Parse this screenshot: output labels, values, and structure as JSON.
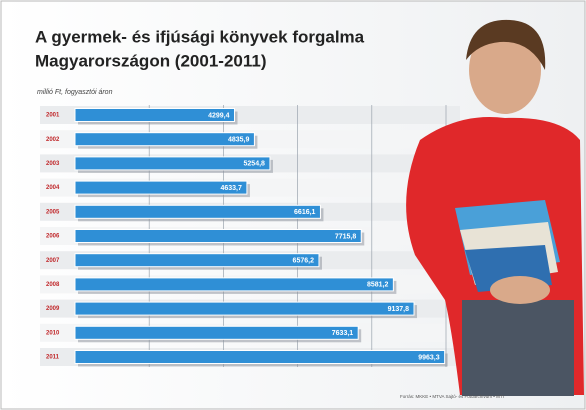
{
  "chart_data": {
    "type": "barh",
    "title": [
      "A gyermek- és ifjúsági könyvek forgalma",
      "Magyarországon (2001-2011)"
    ],
    "subtitle": "millió Ft, fogyasztói áron",
    "categories": [
      "2001",
      "2002",
      "2003",
      "2004",
      "2005",
      "2006",
      "2007",
      "2008",
      "2009",
      "2010",
      "2011"
    ],
    "values": [
      4299.4,
      4835.9,
      5254.8,
      4633.7,
      6616.1,
      7715.8,
      6576.2,
      8581.2,
      9137.8,
      7633.1,
      9963.3
    ],
    "value_labels": [
      "4299,4",
      "4835,9",
      "5254,8",
      "4633,7",
      "6616,1",
      "7715,8",
      "6576,2",
      "8581,2",
      "9137,8",
      "7633,1",
      "9963,3"
    ],
    "color": "#2f8fd6",
    "xlim": [
      0,
      10000
    ],
    "xgrid": [
      2000,
      4000,
      6000,
      8000,
      10000
    ],
    "source": "Forrás: MKKE • MTVA Sajtó- és Fotóarchívum • MTI"
  }
}
